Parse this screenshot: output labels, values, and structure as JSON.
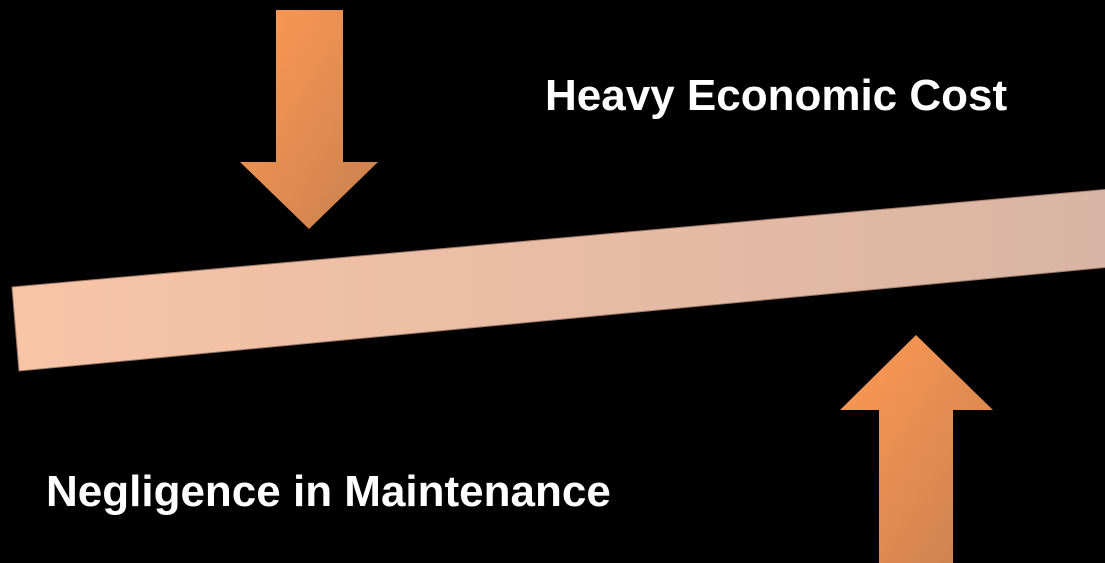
{
  "labels": {
    "top": "Heavy Economic Cost",
    "bottom": "Negligence in Maintenance"
  }
}
